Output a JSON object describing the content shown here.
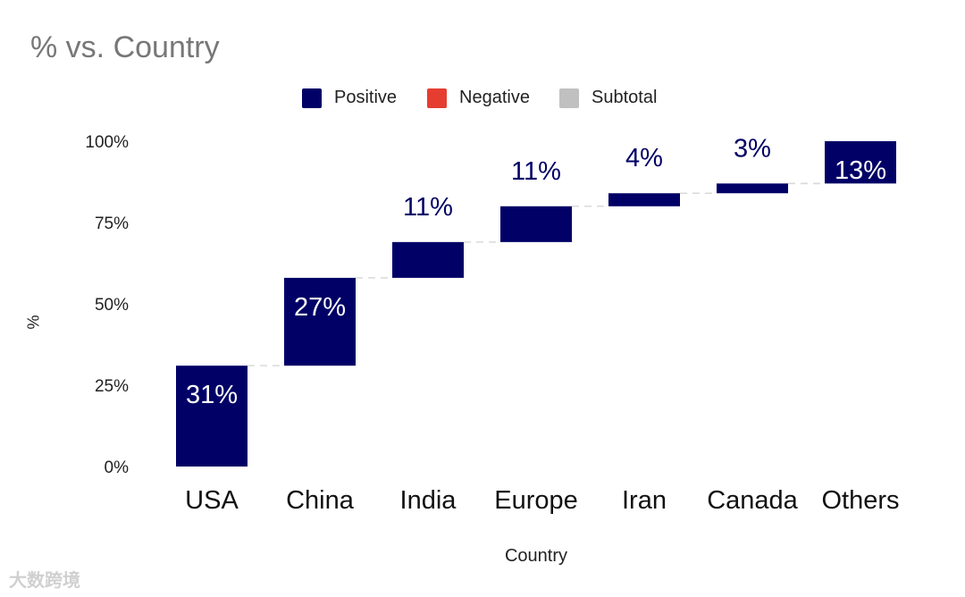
{
  "chart_data": {
    "type": "waterfall",
    "title": "% vs. Country",
    "xlabel": "Country",
    "ylabel": "%",
    "ylim": [
      0,
      100
    ],
    "yticks": [
      "0%",
      "25%",
      "50%",
      "75%",
      "100%"
    ],
    "yticks_values": [
      0,
      25,
      50,
      75,
      100
    ],
    "categories": [
      "USA",
      "China",
      "India",
      "Europe",
      "Iran",
      "Canada",
      "Others"
    ],
    "values": [
      31,
      27,
      11,
      11,
      4,
      3,
      13
    ],
    "labels": [
      "31%",
      "27%",
      "11%",
      "11%",
      "4%",
      "3%",
      "13%"
    ],
    "legend": [
      {
        "name": "Positive",
        "color": "#000066"
      },
      {
        "name": "Negative",
        "color": "#e53e30"
      },
      {
        "name": "Subtotal",
        "color": "#c0c0c0"
      }
    ],
    "bar_color": "#000066",
    "connector_color": "#d9d9d9",
    "label_inside_color": "#ffffff",
    "label_outside_color": "#000066"
  },
  "watermark": "大数跨境"
}
